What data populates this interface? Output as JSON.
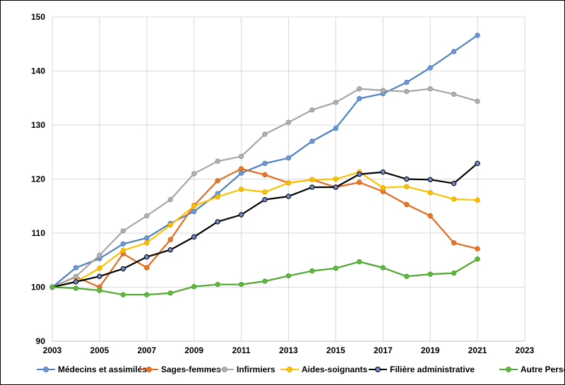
{
  "chart_data": {
    "type": "line",
    "title": "",
    "xlabel": "",
    "ylabel": "",
    "xlim": [
      2003,
      2023
    ],
    "ylim": [
      90,
      150
    ],
    "x_ticks": [
      "2003",
      "2005",
      "2007",
      "2009",
      "2011",
      "2013",
      "2015",
      "2017",
      "2019",
      "2021",
      "2023"
    ],
    "y_ticks": [
      "90",
      "100",
      "110",
      "120",
      "130",
      "140",
      "150"
    ],
    "grid": true,
    "legend_position": "bottom",
    "x": [
      2003,
      2004,
      2005,
      2006,
      2007,
      2008,
      2009,
      2010,
      2011,
      2012,
      2013,
      2014,
      2015,
      2016,
      2017,
      2018,
      2019,
      2020,
      2021
    ],
    "series": [
      {
        "name": "Médecins et assimilés",
        "color": "#4e7fc5",
        "marker_fill": "#6f97d0",
        "marker_edge": "#4e7fc5",
        "values": [
          100.0,
          103.6,
          105.3,
          108.0,
          109.1,
          111.8,
          114.0,
          117.3,
          121.1,
          122.9,
          123.9,
          127.0,
          129.4,
          134.9,
          135.8,
          137.9,
          140.6,
          143.6,
          146.6
        ]
      },
      {
        "name": "Sages-femmes",
        "color": "#e36b1f",
        "marker_fill": "#e8782c",
        "marker_edge": "#d45f16",
        "values": [
          100.0,
          101.9,
          100.0,
          106.2,
          103.6,
          108.8,
          115.1,
          119.7,
          121.9,
          120.8,
          119.3,
          119.9,
          118.5,
          119.4,
          117.7,
          115.3,
          113.2,
          108.2,
          107.1
        ]
      },
      {
        "name": "Infirmiers",
        "color": "#a6a6a6",
        "marker_fill": "#b0b0b0",
        "marker_edge": "#999999",
        "values": [
          100.0,
          102.0,
          105.9,
          110.4,
          113.2,
          116.2,
          121.0,
          123.3,
          124.2,
          128.3,
          130.5,
          132.8,
          134.2,
          136.7,
          136.4,
          136.2,
          136.7,
          135.7,
          134.4
        ]
      },
      {
        "name": "Aides-soignants",
        "color": "#ffc000",
        "marker_fill": "#ffc000",
        "marker_edge": "#e0a800",
        "values": [
          100.0,
          101.0,
          103.5,
          106.8,
          108.2,
          111.5,
          115.0,
          116.7,
          118.1,
          117.6,
          119.3,
          119.9,
          120.0,
          121.3,
          118.4,
          118.6,
          117.5,
          116.3,
          116.1
        ]
      },
      {
        "name": "Filière administrative",
        "color": "#000000",
        "marker_fill": "#6f86c9",
        "marker_edge": "#000000",
        "values": [
          100.0,
          101.0,
          102.0,
          103.4,
          105.6,
          106.9,
          109.3,
          112.1,
          113.4,
          116.2,
          116.8,
          118.5,
          118.5,
          120.9,
          121.3,
          120.0,
          119.9,
          119.2,
          122.9
        ]
      },
      {
        "name": "Autre Personnel",
        "color": "#4ea72e",
        "marker_fill": "#5fb83d",
        "marker_edge": "#4ea72e",
        "values": [
          100.0,
          99.8,
          99.4,
          98.6,
          98.6,
          98.9,
          100.1,
          100.5,
          100.5,
          101.1,
          102.1,
          103.0,
          103.5,
          104.7,
          103.6,
          102.0,
          102.4,
          102.6,
          105.2
        ]
      }
    ]
  }
}
